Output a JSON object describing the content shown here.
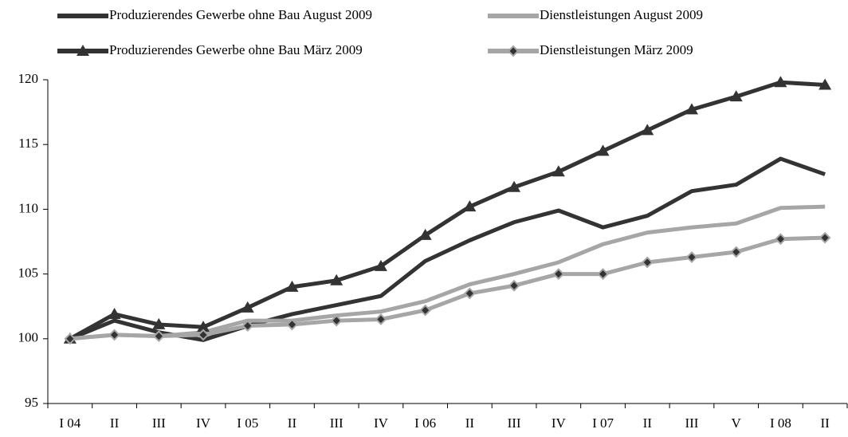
{
  "chart_data": {
    "type": "line",
    "categories": [
      "I 04",
      "II",
      "III",
      "IV",
      "I 05",
      "II",
      "III",
      "IV",
      "I 06",
      "II",
      "III",
      "IV",
      "I 07",
      "II",
      "III",
      "V",
      "I 08",
      "II"
    ],
    "series": [
      {
        "name": "Produzierendes Gewerbe ohne Bau August 2009",
        "color": "#333333",
        "marker": "none",
        "values": [
          100,
          101.4,
          100.5,
          99.9,
          101.0,
          101.9,
          102.6,
          103.3,
          106.0,
          107.6,
          109.0,
          109.9,
          108.6,
          109.5,
          111.4,
          111.9,
          113.9,
          112.7
        ]
      },
      {
        "name": "Dienstleistungen August 2009",
        "color": "#a6a6a6",
        "marker": "none",
        "values": [
          100,
          100.3,
          100.2,
          100.5,
          101.4,
          101.4,
          101.8,
          102.1,
          102.9,
          104.2,
          105.0,
          105.9,
          107.3,
          108.2,
          108.6,
          108.9,
          110.1,
          110.2
        ]
      },
      {
        "name": "Produzierendes Gewerbe ohne Bau März 2009",
        "color": "#333333",
        "marker": "triangle",
        "values": [
          100,
          101.9,
          101.1,
          100.9,
          102.4,
          104.0,
          104.5,
          105.6,
          108.0,
          110.2,
          111.7,
          112.9,
          114.5,
          116.1,
          117.7,
          118.7,
          119.8,
          119.6
        ]
      },
      {
        "name": "Dienstleistungen März 2009",
        "color": "#a6a6a6",
        "marker": "diamond",
        "values": [
          100,
          100.3,
          100.2,
          100.3,
          101.0,
          101.1,
          101.4,
          101.5,
          102.2,
          103.5,
          104.1,
          105.0,
          105.0,
          105.9,
          106.3,
          106.7,
          107.7,
          107.8
        ]
      }
    ],
    "ylim": [
      95,
      120
    ],
    "yticks": [
      95,
      100,
      105,
      110,
      115,
      120
    ],
    "grid": false
  }
}
